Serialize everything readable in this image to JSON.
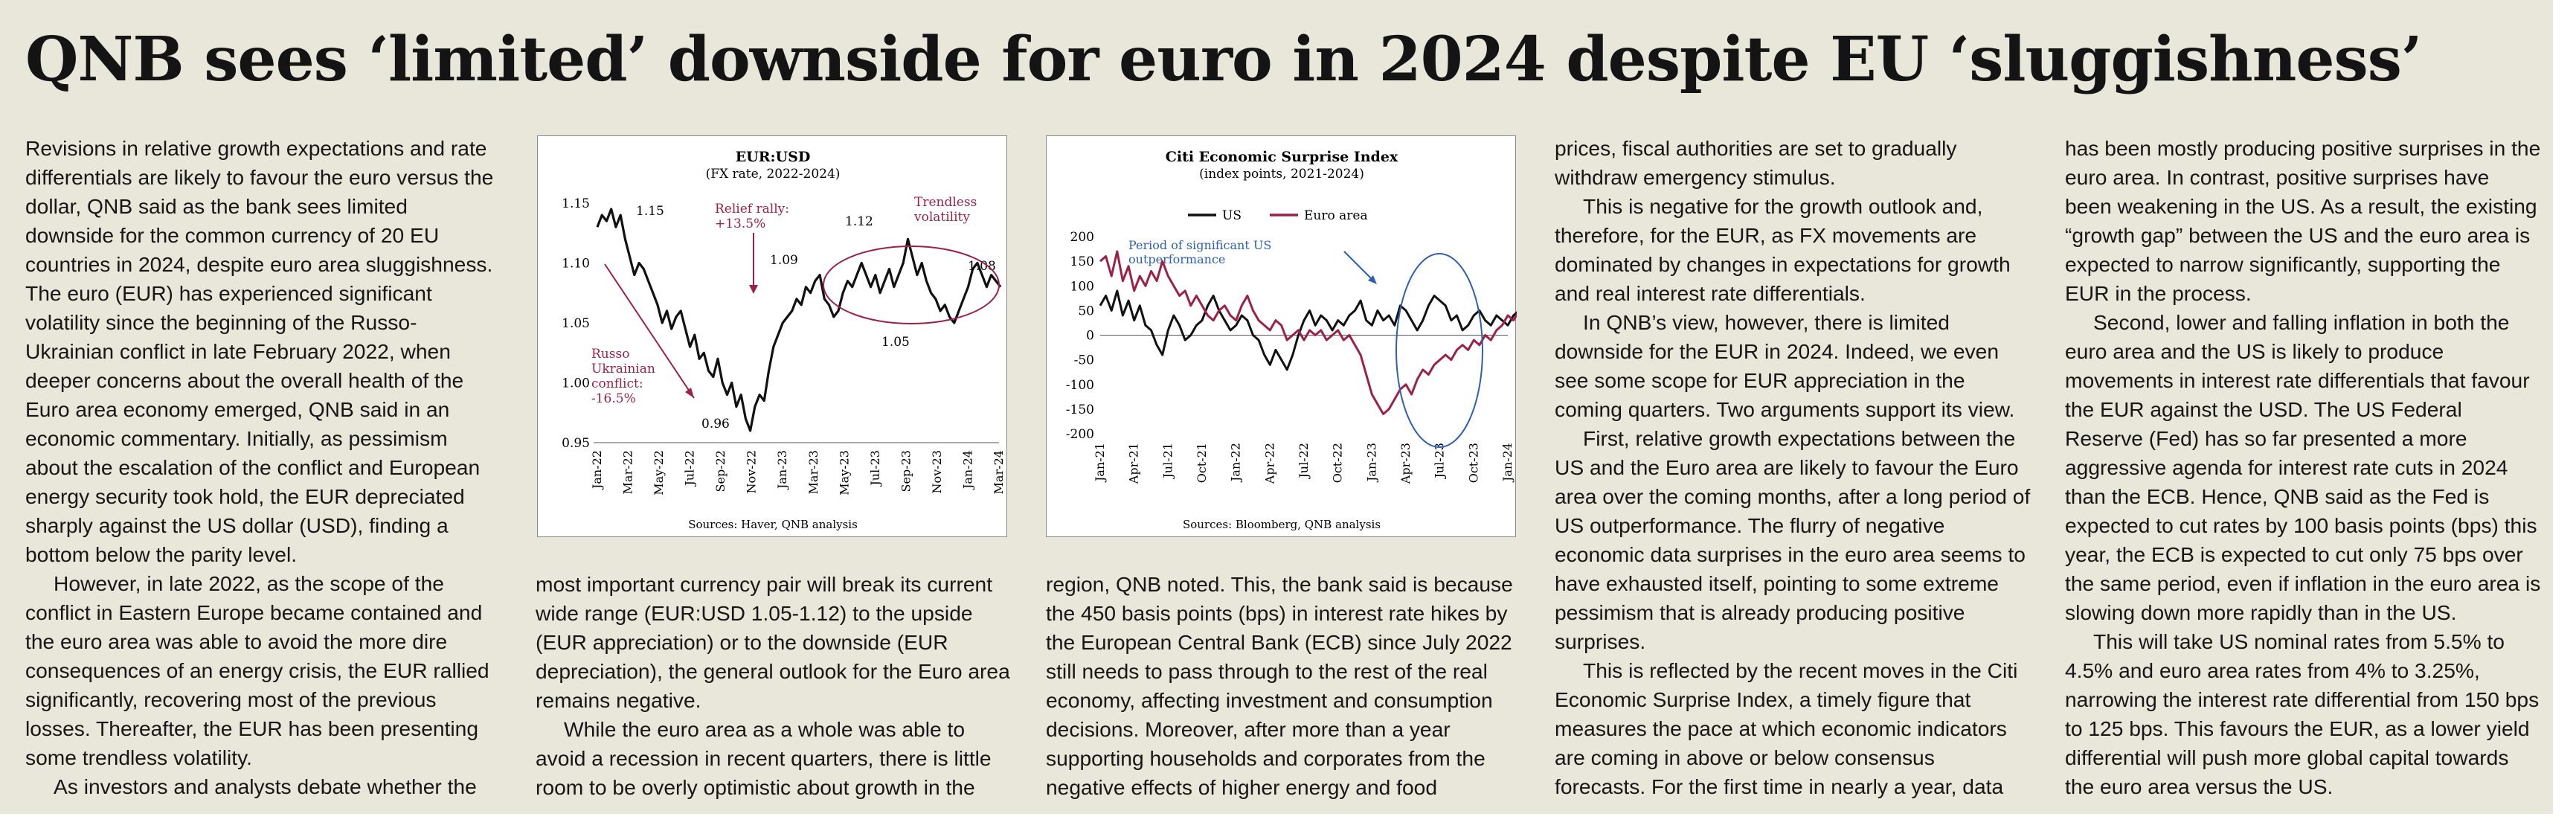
{
  "headline": "QNB sees ‘limited’ downside for euro in 2024 despite EU ‘sluggishness’",
  "columns": {
    "col1": [
      "Revisions in relative growth expectations and rate differentials are likely to favour the euro versus the dollar, QNB said as the bank sees limited downside for the common currency of 20 EU countries in 2024, despite euro area sluggishness. The euro (EUR) has experienced significant volatility since the beginning of the Russo-Ukrainian conflict in late February 2022, when deeper concerns about the overall health of the Euro area economy emerged, QNB said in an economic commentary. Initially, as pessimism about the escalation of the conflict and European energy security took hold, the EUR depreciated sharply against the US dollar (USD), finding a bottom below the parity level.",
      "However, in late 2022, as the scope of the conflict in Eastern Europe became contained and the euro area was able to avoid the more dire consequences of an energy crisis, the EUR rallied significantly, recovering most of the previous losses. Thereafter, the EUR has been presenting some trendless volatility.",
      "As investors and analysts debate whether the"
    ],
    "col2": [
      "most important currency pair will break its current wide range (EUR:USD 1.05-1.12) to the upside (EUR appreciation) or to the downside (EUR depreciation), the general outlook for the Euro area remains negative.",
      "While the euro area as a whole was able to avoid a recession in recent quarters, there is little room to be overly optimistic about growth in the"
    ],
    "col3": [
      "region, QNB noted. This, the bank said is because the 450 basis points (bps) in interest rate hikes by the European Central Bank (ECB) since July 2022 still needs to pass through to the rest of the real economy, affecting investment and consumption decisions.  Moreover, after more than a year supporting households and corporates from the negative effects of higher energy and food"
    ],
    "col4": [
      "prices, fiscal authorities are set to gradually withdraw emergency stimulus.",
      "This is negative for the growth outlook and, therefore, for the EUR, as FX movements are dominated by changes in expectations for growth and real interest rate differentials.",
      "In QNB’s view, however, there is limited downside for the EUR in 2024. Indeed, we even see some scope for EUR appreciation in the coming quarters. Two arguments support its view.",
      "First, relative growth expectations between the US and the Euro area are likely to favour the Euro area over the coming months, after a long period of US outperformance. The flurry of negative economic data surprises in the euro area seems to have exhausted itself, pointing to some extreme pessimism that is already producing positive surprises.",
      "This is reflected by the recent moves in the Citi Economic Surprise Index, a timely figure that measures the pace at which economic indicators are coming in above or below consensus forecasts. For the first time in nearly a year, data"
    ],
    "col5": [
      "has been mostly producing positive surprises in the euro area. In contrast, positive surprises have been weakening in the US. As a result, the existing “growth gap” between the US and the euro area is expected to narrow significantly, supporting the EUR in the process.",
      "Second, lower and falling inflation in both the euro area and the US is likely to produce movements in interest rate differentials that favour the EUR against the USD. The US Federal Reserve (Fed) has so far presented a more aggressive agenda for interest rate cuts in 2024 than the ECB. Hence, QNB said as the Fed is expected to cut rates by 100 basis points (bps) this year, the ECB is expected to cut only 75 bps over the same period, even if inflation in the euro area is slowing down more rapidly than in the US.",
      "This will take US nominal rates from 5.5% to 4.5% and euro area rates from 4% to 3.25%, narrowing the interest rate differential from 150 bps to 125 bps. This favours the EUR, as a lower yield differential will push more global capital towards the euro area versus the US."
    ]
  },
  "chart_data": [
    {
      "type": "line",
      "title": "EUR:USD",
      "subtitle": "(FX rate, 2022-2024)",
      "source": "Sources: Haver, QNB analysis",
      "ylim": [
        0.95,
        1.15
      ],
      "yticks": [
        "0.95",
        "1.00",
        "1.05",
        "1.10",
        "1.15"
      ],
      "xticks": [
        "Jan-22",
        "Mar-22",
        "May-22",
        "Jul-22",
        "Sep-22",
        "Nov-22",
        "Jan-23",
        "Mar-23",
        "May-23",
        "Jul-23",
        "Sep-23",
        "Nov-23",
        "Jan-24",
        "Mar-24"
      ],
      "series": [
        {
          "color": "#111111",
          "x": [
            0,
            0.3,
            0.6,
            0.9,
            1.2,
            1.5,
            1.8,
            2.1,
            2.4,
            2.7,
            3.0,
            3.3,
            3.6,
            3.9,
            4.2,
            4.5,
            4.8,
            5.1,
            5.4,
            5.7,
            6.0,
            6.3,
            6.6,
            6.9,
            7.2,
            7.5,
            7.8,
            8.1,
            8.4,
            8.7,
            9.0,
            9.3,
            9.6,
            9.9,
            10.2,
            10.5,
            10.8,
            11.1,
            11.4,
            11.7,
            12.0,
            12.3,
            12.6,
            12.9,
            13.2,
            13.5,
            13.8,
            14.1,
            14.4,
            14.7,
            15.0,
            15.3,
            15.6,
            15.9,
            16.2,
            16.5,
            16.8,
            17.1,
            17.4,
            17.7,
            18.0,
            18.3,
            18.6,
            18.9,
            19.2,
            19.5,
            19.8,
            20.1,
            20.4,
            20.7,
            21.0,
            21.3,
            21.6,
            21.9,
            22.2,
            22.5,
            22.8,
            23.1,
            23.4,
            23.7,
            24.0,
            24.3,
            24.6,
            24.9,
            25.2,
            25.5,
            25.8,
            26.1
          ],
          "y": [
            1.13,
            1.14,
            1.135,
            1.145,
            1.13,
            1.14,
            1.12,
            1.105,
            1.09,
            1.1,
            1.095,
            1.085,
            1.075,
            1.065,
            1.05,
            1.06,
            1.045,
            1.055,
            1.06,
            1.045,
            1.03,
            1.04,
            1.02,
            1.025,
            1.01,
            1.005,
            1.02,
            1.0,
            0.99,
            1.0,
            0.98,
            0.99,
            0.97,
            0.96,
            0.98,
            0.99,
            0.985,
            1.01,
            1.03,
            1.04,
            1.05,
            1.055,
            1.06,
            1.07,
            1.065,
            1.08,
            1.075,
            1.085,
            1.09,
            1.07,
            1.065,
            1.055,
            1.06,
            1.075,
            1.085,
            1.08,
            1.09,
            1.1,
            1.09,
            1.08,
            1.09,
            1.075,
            1.085,
            1.095,
            1.08,
            1.09,
            1.1,
            1.12,
            1.105,
            1.09,
            1.1,
            1.085,
            1.075,
            1.07,
            1.06,
            1.065,
            1.055,
            1.05,
            1.06,
            1.07,
            1.08,
            1.095,
            1.1,
            1.09,
            1.08,
            1.09,
            1.085,
            1.08
          ]
        }
      ],
      "annotations": [
        "1.15",
        "1.09",
        "1.12",
        "1.08",
        "1.05",
        "0.96",
        "Relief rally:",
        "+13.5%",
        "Trendless",
        "volatility",
        "Russo",
        "Ukrainian",
        "conflict:",
        "-16.5%"
      ]
    },
    {
      "type": "line",
      "title": "Citi Economic Surprise Index",
      "subtitle": "(index points, 2021-2024)",
      "source": "Sources: Bloomberg, QNB analysis",
      "ylim": [
        -200,
        200
      ],
      "yticks": [
        "200",
        "150",
        "100",
        "50",
        "0",
        "-50",
        "-100",
        "-150",
        "-200"
      ],
      "xticks": [
        "Jan-21",
        "Apr-21",
        "Jul-21",
        "Oct-21",
        "Jan-22",
        "Apr-22",
        "Jul-22",
        "Oct-22",
        "Jan-23",
        "Apr-23",
        "Jul-23",
        "Oct-23",
        "Jan-24"
      ],
      "annotations": [
        "Period of significant US",
        "outperformance"
      ],
      "series": [
        {
          "name": "US",
          "color": "#111111",
          "x": [
            0,
            0.5,
            1,
            1.5,
            2,
            2.5,
            3,
            3.5,
            4,
            4.5,
            5,
            5.5,
            6,
            6.5,
            7,
            7.5,
            8,
            8.5,
            9,
            9.5,
            10,
            10.5,
            11,
            11.5,
            12,
            12.5,
            13,
            13.5,
            14,
            14.5,
            15,
            15.5,
            16,
            16.5,
            17,
            17.5,
            18,
            18.5,
            19,
            19.5,
            20,
            20.5,
            21,
            21.5,
            22,
            22.5,
            23,
            23.5,
            24,
            24.5,
            25,
            25.5,
            26,
            26.5,
            27,
            27.5,
            28,
            28.5,
            29,
            29.5,
            30,
            30.5,
            31,
            31.5,
            32,
            32.5,
            33,
            33.5,
            34,
            34.5,
            35,
            35.5,
            36,
            36.5,
            37
          ],
          "y": [
            60,
            80,
            50,
            90,
            40,
            70,
            30,
            60,
            20,
            10,
            -20,
            -40,
            10,
            40,
            20,
            -10,
            0,
            20,
            30,
            60,
            80,
            50,
            30,
            10,
            20,
            40,
            30,
            0,
            -10,
            -40,
            -60,
            -30,
            -50,
            -70,
            -40,
            0,
            30,
            50,
            20,
            40,
            30,
            10,
            30,
            20,
            40,
            50,
            70,
            30,
            20,
            50,
            30,
            40,
            20,
            60,
            50,
            30,
            10,
            30,
            60,
            80,
            70,
            60,
            30,
            40,
            10,
            20,
            40,
            50,
            30,
            20,
            40,
            30,
            20,
            40,
            50
          ]
        },
        {
          "name": "Euro area",
          "color": "#9c2146",
          "x": [
            0,
            0.5,
            1,
            1.5,
            2,
            2.5,
            3,
            3.5,
            4,
            4.5,
            5,
            5.5,
            6,
            6.5,
            7,
            7.5,
            8,
            8.5,
            9,
            9.5,
            10,
            10.5,
            11,
            11.5,
            12,
            12.5,
            13,
            13.5,
            14,
            14.5,
            15,
            15.5,
            16,
            16.5,
            17,
            17.5,
            18,
            18.5,
            19,
            19.5,
            20,
            20.5,
            21,
            21.5,
            22,
            22.5,
            23,
            23.5,
            24,
            24.5,
            25,
            25.5,
            26,
            26.5,
            27,
            27.5,
            28,
            28.5,
            29,
            29.5,
            30,
            30.5,
            31,
            31.5,
            32,
            32.5,
            33,
            33.5,
            34,
            34.5,
            35,
            35.5,
            36,
            36.5,
            37
          ],
          "y": [
            150,
            160,
            120,
            170,
            110,
            140,
            90,
            120,
            100,
            130,
            110,
            150,
            120,
            100,
            80,
            90,
            60,
            80,
            60,
            40,
            30,
            50,
            60,
            40,
            30,
            60,
            80,
            50,
            30,
            20,
            10,
            30,
            20,
            -10,
            0,
            10,
            -10,
            10,
            0,
            10,
            -10,
            0,
            10,
            -10,
            0,
            -20,
            -40,
            -80,
            -120,
            -140,
            -160,
            -150,
            -130,
            -110,
            -100,
            -120,
            -90,
            -70,
            -80,
            -60,
            -50,
            -40,
            -50,
            -30,
            -20,
            -30,
            -10,
            -20,
            0,
            -10,
            10,
            20,
            40,
            30,
            50
          ]
        }
      ]
    }
  ]
}
